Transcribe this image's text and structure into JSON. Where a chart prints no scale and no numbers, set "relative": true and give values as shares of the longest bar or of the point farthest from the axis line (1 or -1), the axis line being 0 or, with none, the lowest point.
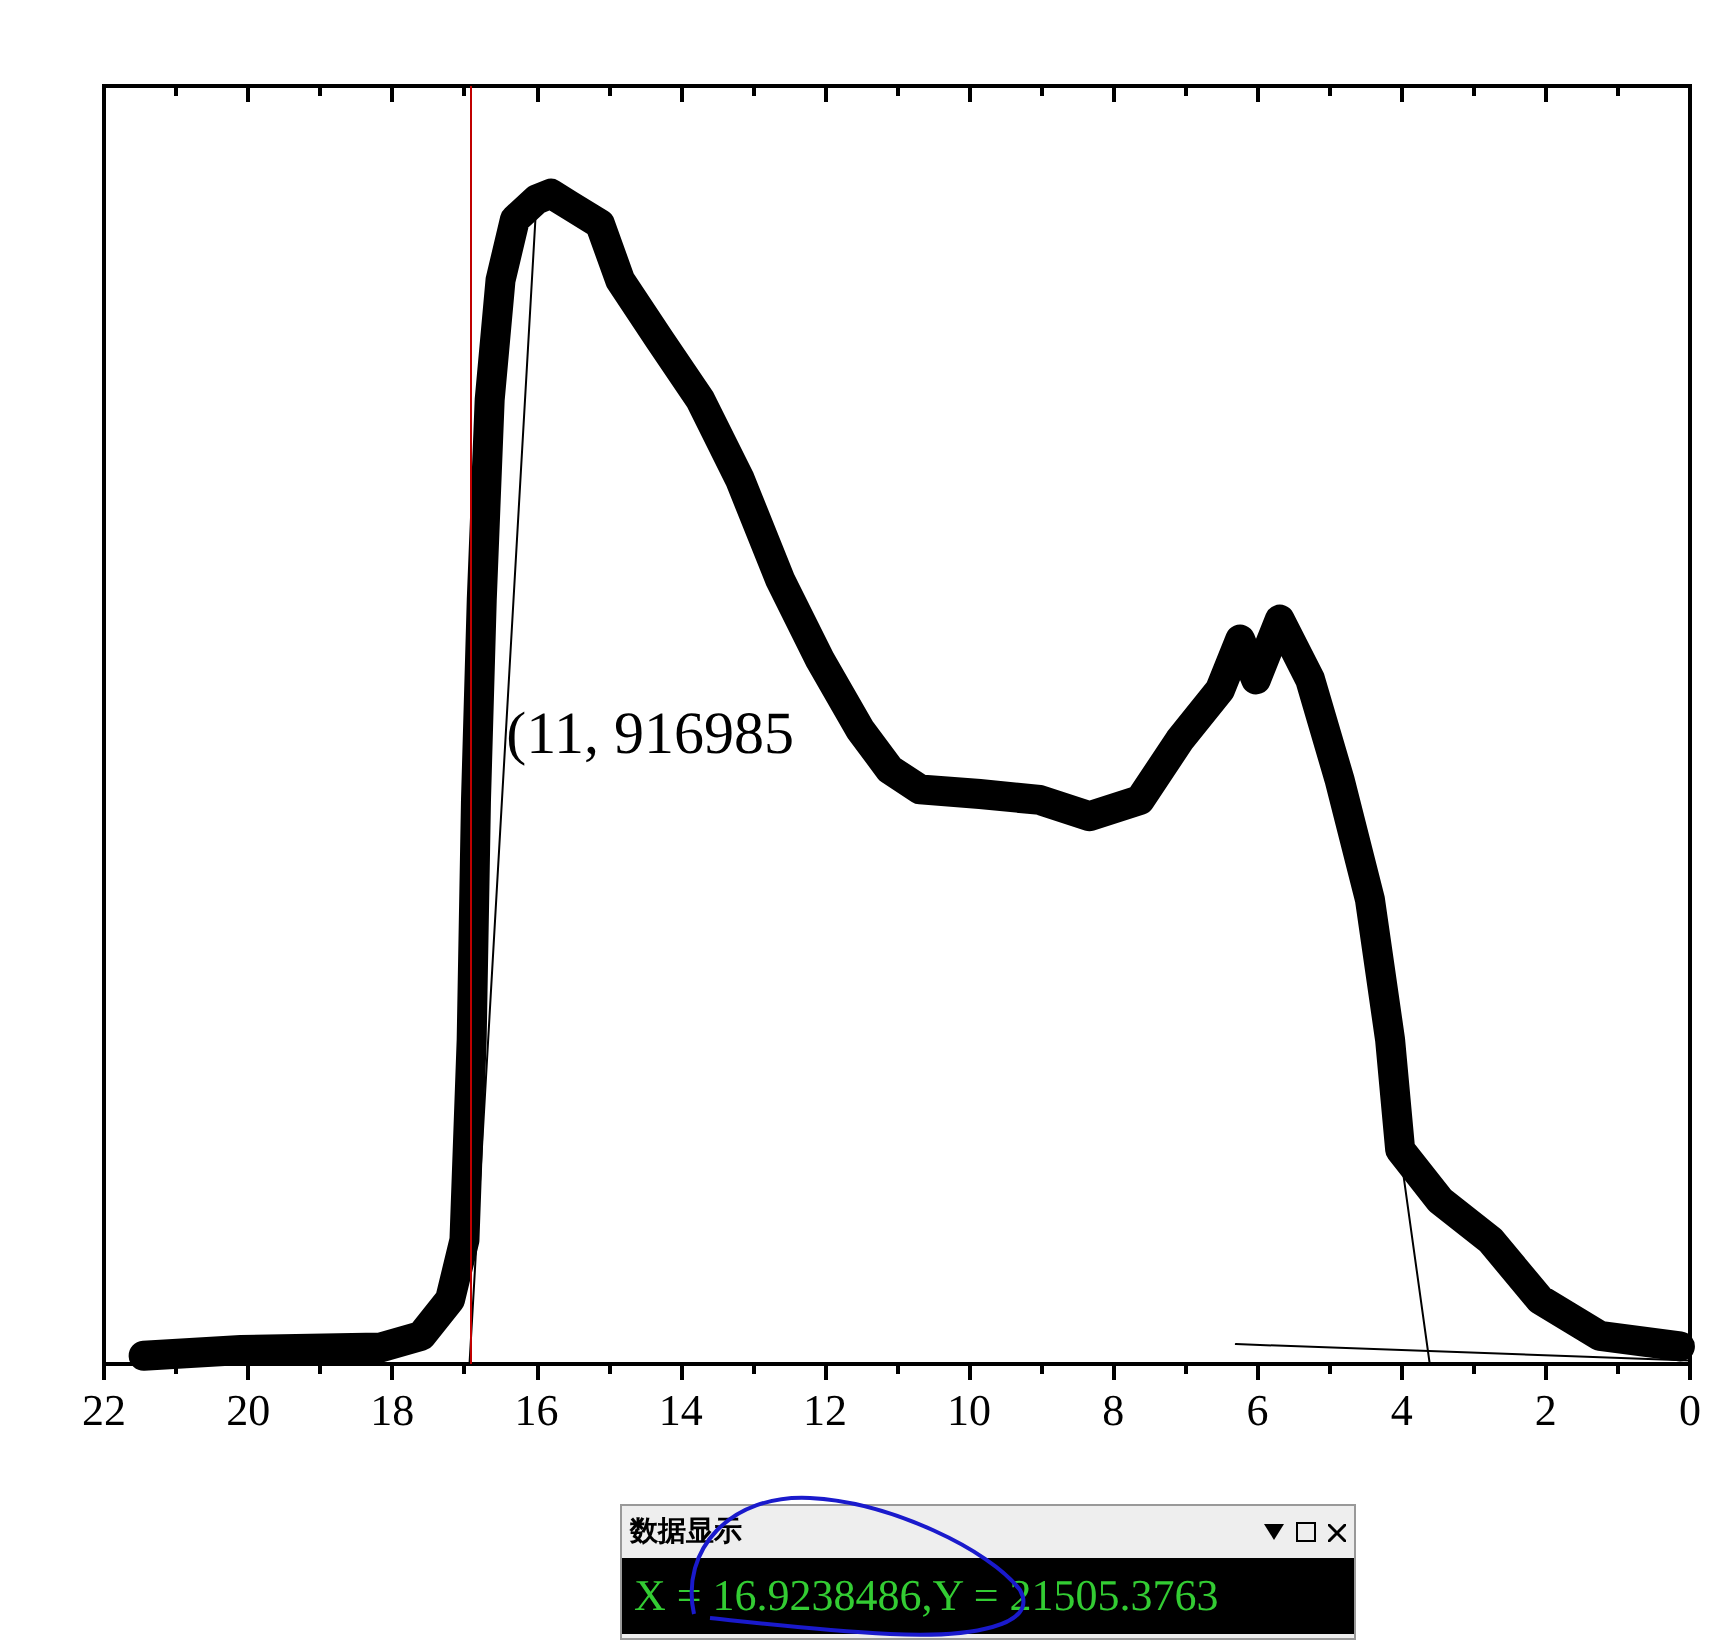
{
  "chart_data": {
    "type": "line",
    "relative": true,
    "tick_labels": "x",
    "line_style": "solid",
    "xlim": [
      22,
      0
    ],
    "xticks": [
      22,
      20,
      18,
      16,
      14,
      12,
      10,
      8,
      6,
      4,
      2,
      0
    ],
    "series": [
      {
        "color": "#000000",
        "x": [
          21.45,
          20.1,
          18.17,
          17.6,
          17.2,
          17.0,
          16.9,
          16.84,
          16.76,
          16.65,
          16.5,
          16.3,
          16.0,
          15.8,
          15.54,
          15.12,
          14.84,
          14.29,
          13.73,
          13.18,
          12.62,
          12.07,
          11.51,
          11.1,
          10.68,
          9.85,
          9.02,
          8.33,
          7.63,
          7.08,
          6.52,
          6.24,
          6.02,
          5.69,
          5.27,
          4.86,
          4.44,
          4.16,
          4.02,
          3.47,
          2.77,
          2.08,
          1.25,
          0.14
        ],
        "values": [
          0.007,
          0.012,
          0.014,
          0.024,
          0.055,
          0.106,
          0.277,
          0.482,
          0.653,
          0.824,
          0.926,
          0.978,
          0.995,
          1.0,
          0.99,
          0.974,
          0.926,
          0.875,
          0.824,
          0.756,
          0.67,
          0.602,
          0.542,
          0.508,
          0.491,
          0.487,
          0.482,
          0.468,
          0.482,
          0.533,
          0.576,
          0.619,
          0.585,
          0.636,
          0.585,
          0.499,
          0.397,
          0.277,
          0.183,
          0.14,
          0.106,
          0.055,
          0.024,
          0.015
        ]
      },
      {
        "type": "line",
        "color": "#000000",
        "x": [
          16.0,
          16.93
        ],
        "values": [
          0.995,
          0
        ]
      },
      {
        "type": "line",
        "color": "#000000",
        "x": [
          4.39,
          3.61
        ],
        "values": [
          0.345,
          0
        ]
      },
      {
        "type": "line",
        "color": "#000000",
        "x": [
          6.3,
          0
        ],
        "values": [
          0.017,
          0.003
        ]
      }
    ],
    "ref_lines": [
      {
        "axis": "x",
        "value": 16.92,
        "color": "#c00000"
      }
    ],
    "annotations": [
      {
        "text": "(11, 916985",
        "x": 16.42,
        "y": 0.533
      },
      "数据显示",
      "X = 16.9238486,Y = 21505.3763"
    ]
  }
}
